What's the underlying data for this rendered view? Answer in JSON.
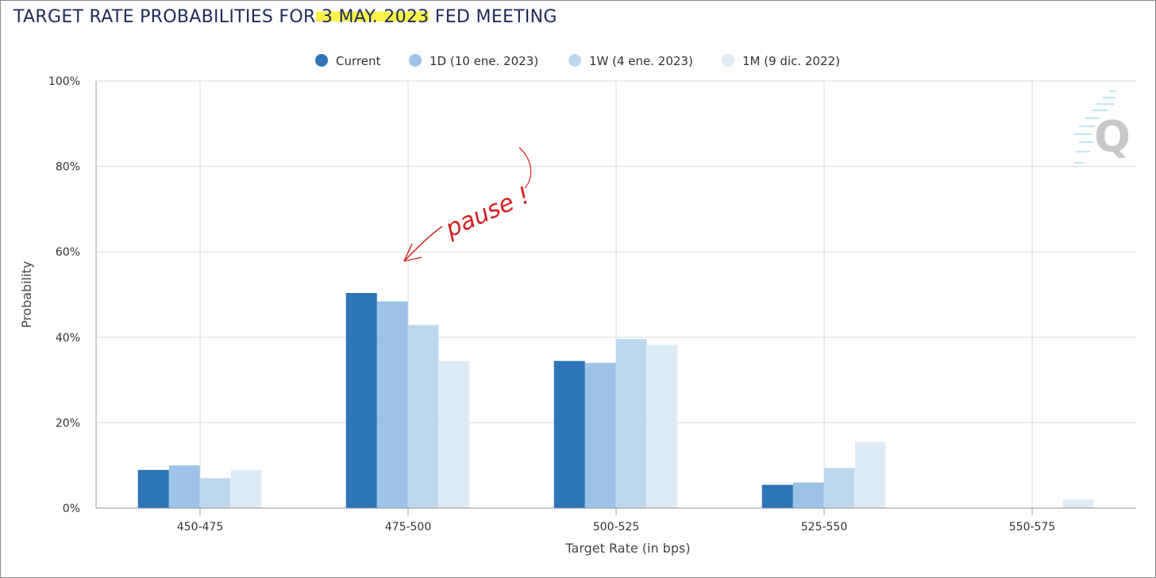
{
  "header": {
    "title_pre": "TARGET RATE PROBABILITIES FOR",
    "title_highlight": " 3 MAY. 2023",
    "title_post": " FED MEETING"
  },
  "annotation": {
    "text": "pause !",
    "color": "#d42020"
  },
  "watermark": {
    "icon": "q-logo-icon"
  },
  "chart_data": {
    "type": "bar",
    "title": "TARGET RATE PROBABILITIES FOR 3 MAY. 2023 FED MEETING",
    "xlabel": "Target Rate (in bps)",
    "ylabel": "Probability",
    "ylim": [
      0,
      100
    ],
    "yticks": [
      "0%",
      "20%",
      "40%",
      "60%",
      "80%",
      "100%"
    ],
    "grid": true,
    "legend_position": "top-center",
    "categories": [
      "450-475",
      "475-500",
      "500-525",
      "525-550",
      "550-575"
    ],
    "series": [
      {
        "name": "Current",
        "color": "#2e75b6",
        "values": [
          8.9,
          50.3,
          34.4,
          5.4,
          0
        ]
      },
      {
        "name": "1D (10 ene. 2023)",
        "color": "#9dc3e6",
        "values": [
          10.0,
          48.4,
          34.0,
          6.0,
          0
        ]
      },
      {
        "name": "1W (4 ene. 2023)",
        "color": "#bdd7ee",
        "values": [
          7.0,
          42.9,
          39.6,
          9.4,
          0
        ]
      },
      {
        "name": "1M (9 dic. 2022)",
        "color": "#ddebf7",
        "values": [
          8.9,
          34.4,
          38.2,
          15.5,
          2.0
        ]
      }
    ]
  }
}
